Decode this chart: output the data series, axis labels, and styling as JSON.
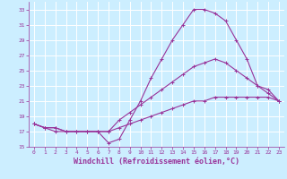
{
  "xlabel": "Windchill (Refroidissement éolien,°C)",
  "ylabel": "",
  "bg_color": "#cceeff",
  "line_color": "#993399",
  "grid_color": "#ffffff",
  "xlim": [
    -0.5,
    23.5
  ],
  "ylim": [
    15,
    34
  ],
  "xticks": [
    0,
    1,
    2,
    3,
    4,
    5,
    6,
    7,
    8,
    9,
    10,
    11,
    12,
    13,
    14,
    15,
    16,
    17,
    18,
    19,
    20,
    21,
    22,
    23
  ],
  "yticks": [
    15,
    17,
    19,
    21,
    23,
    25,
    27,
    29,
    31,
    33
  ],
  "line1_x": [
    0,
    1,
    2,
    3,
    4,
    5,
    6,
    7,
    8,
    9,
    10,
    11,
    12,
    13,
    14,
    15,
    16,
    17,
    18,
    19,
    20,
    21,
    22,
    23
  ],
  "line1_y": [
    18.0,
    17.5,
    17.0,
    17.0,
    17.0,
    17.0,
    17.0,
    15.5,
    16.0,
    18.5,
    21.0,
    24.0,
    26.5,
    29.0,
    31.0,
    33.0,
    33.0,
    32.5,
    31.5,
    29.0,
    26.5,
    23.0,
    22.0,
    21.0
  ],
  "line2_x": [
    0,
    1,
    2,
    3,
    4,
    5,
    6,
    7,
    8,
    9,
    10,
    11,
    12,
    13,
    14,
    15,
    16,
    17,
    18,
    19,
    20,
    21,
    22,
    23
  ],
  "line2_y": [
    18.0,
    17.5,
    17.5,
    17.0,
    17.0,
    17.0,
    17.0,
    17.0,
    18.5,
    19.5,
    20.5,
    21.5,
    22.5,
    23.5,
    24.5,
    25.5,
    26.0,
    26.5,
    26.0,
    25.0,
    24.0,
    23.0,
    22.5,
    21.0
  ],
  "line3_x": [
    0,
    1,
    2,
    3,
    4,
    5,
    6,
    7,
    8,
    9,
    10,
    11,
    12,
    13,
    14,
    15,
    16,
    17,
    18,
    19,
    20,
    21,
    22,
    23
  ],
  "line3_y": [
    18.0,
    17.5,
    17.5,
    17.0,
    17.0,
    17.0,
    17.0,
    17.0,
    17.5,
    18.0,
    18.5,
    19.0,
    19.5,
    20.0,
    20.5,
    21.0,
    21.0,
    21.5,
    21.5,
    21.5,
    21.5,
    21.5,
    21.5,
    21.0
  ],
  "marker": "+",
  "markersize": 3,
  "linewidth": 0.8,
  "tick_fontsize": 4.5,
  "xlabel_fontsize": 6,
  "tick_color": "#993399",
  "spine_color": "#993399"
}
